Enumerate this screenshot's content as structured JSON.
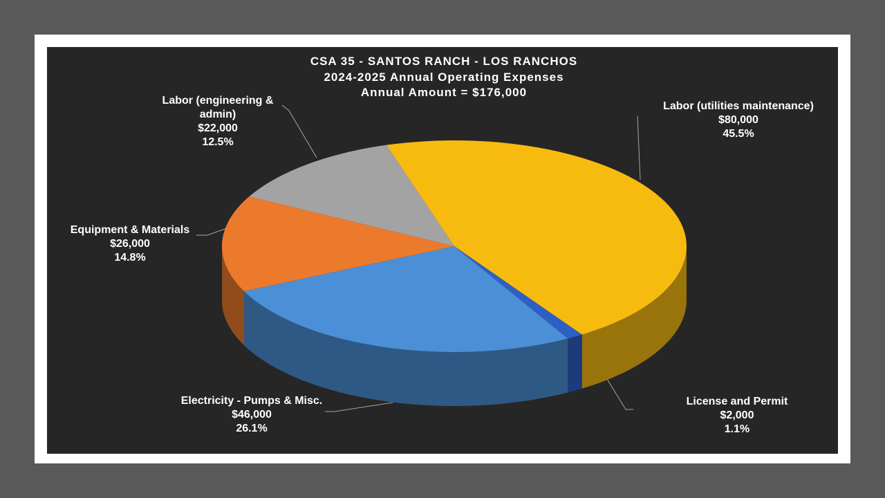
{
  "chart_data": {
    "type": "pie",
    "title": "CSA 35 - SANTOS RANCH - LOS RANCHOS",
    "subtitle": "2024-2025 Annual Operating Expenses",
    "annotation": "Annual Amount = $176,000",
    "categories": [
      "Labor (utilities maintenance)",
      "License and Permit",
      "Electricity - Pumps & Misc.",
      "Equipment & Materials",
      "Labor (engineering & admin)"
    ],
    "values": [
      80000,
      2000,
      46000,
      26000,
      22000
    ],
    "value_labels": [
      "$80,000",
      "$2,000",
      "$46,000",
      "$26,000",
      "$22,000"
    ],
    "percent_labels": [
      "45.5%",
      "1.1%",
      "26.1%",
      "14.8%",
      "12.5%"
    ],
    "colors": [
      "#f7bb10",
      "#2e5fc4",
      "#4b8fd6",
      "#ec7a2c",
      "#a3a3a3"
    ]
  }
}
